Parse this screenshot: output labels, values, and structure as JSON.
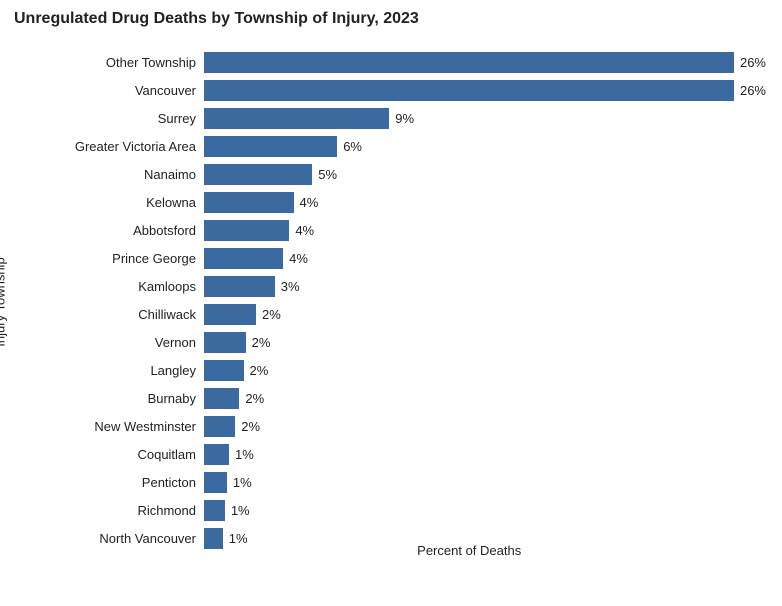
{
  "chart": {
    "type": "bar",
    "title": "Unregulated Drug Deaths by Township of Injury, 2023",
    "title_fontsize": 16,
    "title_fontweight": 700,
    "title_color": "#222222",
    "yaxis_label": "Injury Township",
    "xaxis_label": "Percent of Deaths",
    "axis_label_fontsize": 13,
    "category_fontsize": 13,
    "value_fontsize": 13,
    "background_color": "#ffffff",
    "bar_color": "#3b6aa0",
    "text_color": "#222222",
    "xlim": [
      0,
      27
    ],
    "categories": [
      "Other Township",
      "Vancouver",
      "Surrey",
      "Greater Victoria Area",
      "Nanaimo",
      "Kelowna",
      "Abbotsford",
      "Prince George",
      "Kamloops",
      "Chilliwack",
      "Vernon",
      "Langley",
      "Burnaby",
      "New Westminster",
      "Coquitlam",
      "Penticton",
      "Richmond",
      "North Vancouver"
    ],
    "values": [
      26,
      26,
      9,
      6,
      5,
      4,
      4,
      4,
      3,
      2,
      2,
      2,
      2,
      2,
      1,
      1,
      1,
      1
    ],
    "bar_lengths_pct": [
      26.2,
      25.8,
      8.9,
      6.4,
      5.2,
      4.3,
      4.1,
      3.8,
      3.4,
      2.5,
      2.0,
      1.9,
      1.7,
      1.5,
      1.2,
      1.1,
      1.0,
      0.9
    ],
    "value_labels": [
      "26%",
      "26%",
      "9%",
      "6%",
      "5%",
      "4%",
      "4%",
      "4%",
      "3%",
      "2%",
      "2%",
      "2%",
      "2%",
      "2%",
      "1%",
      "1%",
      "1%",
      "1%"
    ]
  }
}
